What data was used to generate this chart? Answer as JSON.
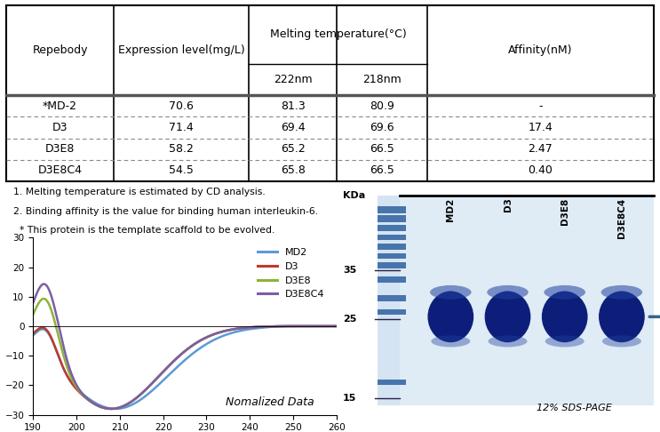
{
  "table": {
    "col_names": [
      "Repebody",
      "Expression level(mg/L)",
      "222nm",
      "218nm",
      "Affinity(nM)"
    ],
    "rows": [
      [
        "*MD-2",
        "70.6",
        "81.3",
        "80.9",
        "-"
      ],
      [
        "D3",
        "71.4",
        "69.4",
        "69.6",
        "17.4"
      ],
      [
        "D3E8",
        "58.2",
        "65.2",
        "66.5",
        "2.47"
      ],
      [
        "D3E8C4",
        "54.5",
        "65.8",
        "66.5",
        "0.40"
      ]
    ]
  },
  "footnotes": [
    "1. Melting temperature is estimated by CD analysis.",
    "2. Binding affinity is the value for binding human interleukin-6.",
    "  * This protein is the template scaffold to be evolved."
  ],
  "plot": {
    "annotation": "Nomalized Data",
    "xlim": [
      190,
      260
    ],
    "ylim": [
      -30,
      30
    ],
    "yticks": [
      -30,
      -20,
      -10,
      0,
      10,
      20,
      30
    ],
    "xticks": [
      190,
      200,
      210,
      220,
      230,
      240,
      250,
      260
    ],
    "series": [
      {
        "label": "MD2",
        "color": "#5b9bd5"
      },
      {
        "label": "D3",
        "color": "#c0392b"
      },
      {
        "label": "D3E8",
        "color": "#8db33a"
      },
      {
        "label": "D3E8C4",
        "color": "#7b5ea7"
      }
    ]
  },
  "gel_labels": [
    "MD2",
    "D3",
    "D3E8",
    "D3E8C4"
  ],
  "gel_caption": "12% SDS-PAGE",
  "background_color": "#ffffff"
}
